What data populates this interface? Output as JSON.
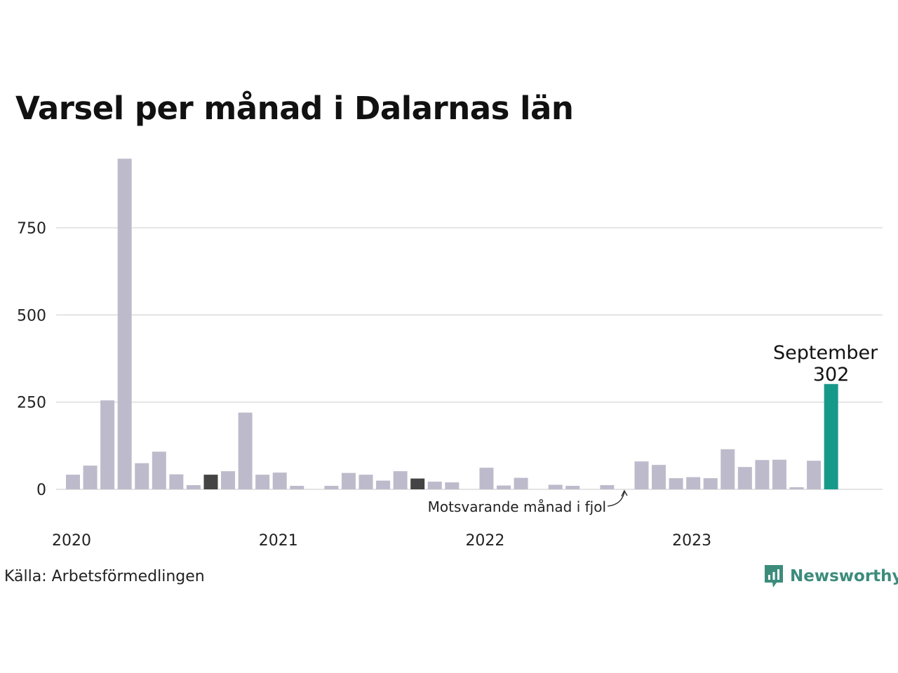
{
  "title": "Varsel per månad i Dalarnas län",
  "source": "Källa: Arbetsförmedlingen",
  "brand": {
    "name": "Newsworthy",
    "color": "#3c8c7c"
  },
  "colors": {
    "bar": "#bdbbcb",
    "comparison": "#444444",
    "highlight": "#17998a",
    "grid": "#e4e4e4"
  },
  "chart_data": {
    "type": "bar",
    "categories": [
      "2020-01",
      "2020-02",
      "2020-03",
      "2020-04",
      "2020-05",
      "2020-06",
      "2020-07",
      "2020-08",
      "2020-09",
      "2020-10",
      "2020-11",
      "2020-12",
      "2021-01",
      "2021-02",
      "2021-03",
      "2021-04",
      "2021-05",
      "2021-06",
      "2021-07",
      "2021-08",
      "2021-09",
      "2021-10",
      "2021-11",
      "2021-12",
      "2022-01",
      "2022-02",
      "2022-03",
      "2022-04",
      "2022-05",
      "2022-06",
      "2022-07",
      "2022-08",
      "2022-09",
      "2022-10",
      "2022-11",
      "2022-12",
      "2023-01",
      "2023-02",
      "2023-03",
      "2023-04",
      "2023-05",
      "2023-06",
      "2023-07",
      "2023-08",
      "2023-09"
    ],
    "values": [
      42,
      68,
      255,
      948,
      75,
      108,
      43,
      12,
      42,
      52,
      220,
      42,
      48,
      10,
      0,
      10,
      47,
      42,
      25,
      52,
      31,
      22,
      20,
      0,
      62,
      11,
      33,
      0,
      13,
      10,
      0,
      12,
      0,
      80,
      70,
      32,
      35,
      32,
      115,
      64,
      84,
      85,
      6,
      82,
      302
    ],
    "comparison_index": [
      8,
      20
    ],
    "highlight_index": 44,
    "yticks": [
      0,
      250,
      500,
      750
    ],
    "ylim": [
      0,
      948
    ],
    "xtick_labels": [
      "2020",
      "2021",
      "2022",
      "2023"
    ],
    "highlight_label": "September",
    "highlight_value_label": "302",
    "annotation": "Motsvarande månad i fjol",
    "grid": true
  }
}
